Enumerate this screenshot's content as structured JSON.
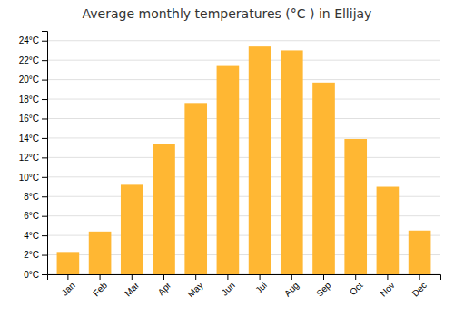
{
  "chart_data": {
    "type": "bar",
    "title": "Average monthly temperatures (°C ) in Ellijay",
    "categories": [
      "Jan",
      "Feb",
      "Mar",
      "Apr",
      "May",
      "Jun",
      "Jul",
      "Aug",
      "Sep",
      "Oct",
      "Nov",
      "Dec"
    ],
    "values": [
      2.3,
      4.4,
      9.2,
      13.4,
      17.6,
      21.4,
      23.4,
      23.0,
      19.7,
      13.9,
      9.0,
      4.5
    ],
    "color": "#FFB733",
    "ylim": [
      0,
      25
    ],
    "yticks": [
      {
        "value": 0,
        "label": "0°C"
      },
      {
        "value": 2,
        "label": "2°C"
      },
      {
        "value": 4,
        "label": "4°C"
      },
      {
        "value": 6,
        "label": "6°C"
      },
      {
        "value": 8,
        "label": "8°C"
      },
      {
        "value": 10,
        "label": "10°C"
      },
      {
        "value": 12,
        "label": "12°C"
      },
      {
        "value": 14,
        "label": "14°C"
      },
      {
        "value": 16,
        "label": "16°C"
      },
      {
        "value": 18,
        "label": "18°C"
      },
      {
        "value": 20,
        "label": "20°C"
      },
      {
        "value": 22,
        "label": "22°C"
      },
      {
        "value": 24,
        "label": "24°C"
      }
    ],
    "grid": true
  }
}
